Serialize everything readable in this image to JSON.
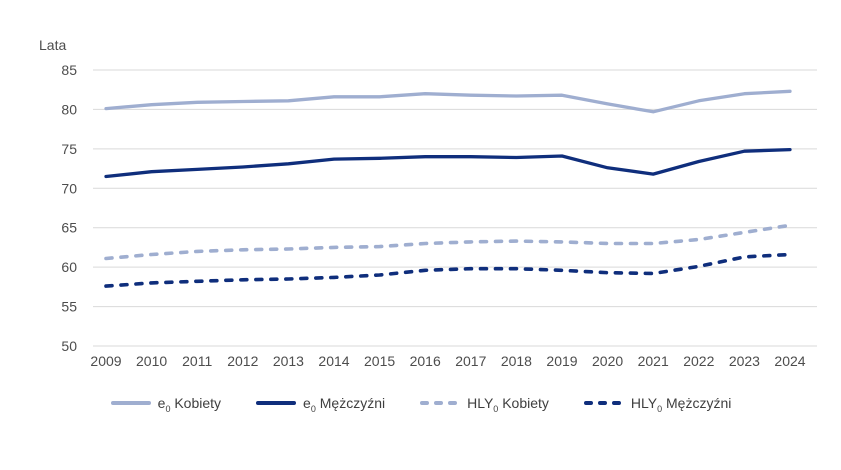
{
  "chart_data": {
    "type": "line",
    "title": "",
    "xlabel": "",
    "ylabel": "Lata",
    "x": [
      2009,
      2010,
      2011,
      2012,
      2013,
      2014,
      2015,
      2016,
      2017,
      2018,
      2019,
      2020,
      2021,
      2022,
      2023,
      2024
    ],
    "ylim": [
      50,
      85
    ],
    "ytick_step": 5,
    "grid": "horizontal",
    "legend_position": "bottom",
    "series": [
      {
        "name": "e0 Kobiety",
        "label": {
          "prefix": "e",
          "sub": "0",
          "suffix": "Kobiety"
        },
        "style": "solid",
        "color": "#9faed0",
        "values": [
          80.1,
          80.6,
          80.9,
          81.0,
          81.1,
          81.6,
          81.6,
          82.0,
          81.8,
          81.7,
          81.8,
          80.7,
          79.7,
          81.1,
          82.0,
          82.3
        ]
      },
      {
        "name": "e0 Mężczyźni",
        "label": {
          "prefix": "e",
          "sub": "0",
          "suffix": "Mężczyźni"
        },
        "style": "solid",
        "color": "#0f2e7c",
        "values": [
          71.5,
          72.1,
          72.4,
          72.7,
          73.1,
          73.7,
          73.8,
          74.0,
          74.0,
          73.9,
          74.1,
          72.6,
          71.8,
          73.4,
          74.7,
          74.9
        ]
      },
      {
        "name": "HLY0 Kobiety",
        "label": {
          "prefix": "HLY",
          "sub": "0",
          "suffix": "Kobiety"
        },
        "style": "dashed",
        "color": "#9faed0",
        "values": [
          61.1,
          61.6,
          62.0,
          62.2,
          62.3,
          62.5,
          62.6,
          63.0,
          63.2,
          63.3,
          63.2,
          63.0,
          63.0,
          63.5,
          64.4,
          65.3
        ]
      },
      {
        "name": "HLY0 Mężczyźni",
        "label": {
          "prefix": "HLY",
          "sub": "0",
          "suffix": "Mężczyźni"
        },
        "style": "dashed",
        "color": "#0f2e7c",
        "values": [
          57.6,
          58.0,
          58.2,
          58.4,
          58.5,
          58.7,
          59.0,
          59.6,
          59.8,
          59.8,
          59.6,
          59.3,
          59.2,
          60.1,
          61.3,
          61.6
        ]
      }
    ]
  },
  "colors": {
    "background": "#ffffff",
    "gridline": "#d9d9d9",
    "tick_label": "#4d4d4d",
    "axis_title": "#4d4d4d",
    "legend_text": "#3f3f3f",
    "accent_light": "#9faed0",
    "accent_dark": "#0f2e7c"
  }
}
